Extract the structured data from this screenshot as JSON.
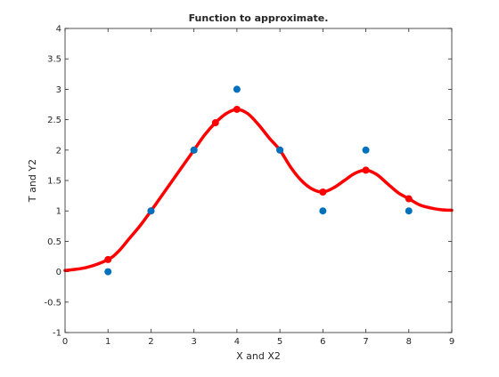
{
  "chart_data": {
    "type": "scatter",
    "title": "Function to approximate.",
    "xlabel": "X and X2",
    "ylabel": "T and Y2",
    "xlim": [
      0,
      9
    ],
    "ylim": [
      -1,
      4
    ],
    "x_ticks": [
      "0",
      "1",
      "2",
      "3",
      "4",
      "5",
      "6",
      "7",
      "8",
      "9"
    ],
    "y_ticks": [
      "-1",
      "-0.5",
      "0",
      "0.5",
      "1",
      "1.5",
      "2",
      "2.5",
      "3",
      "3.5",
      "4"
    ],
    "grid": false,
    "legend": "none",
    "series": [
      {
        "kind": "scatter",
        "color": "#0072bd",
        "x": [
          1,
          2,
          3,
          4,
          5,
          6,
          7,
          8
        ],
        "y": [
          0,
          1,
          2,
          3,
          2,
          1,
          2,
          1
        ]
      },
      {
        "kind": "line",
        "color": "#ff0000",
        "marker": "circle",
        "x": [
          0,
          0.5,
          1,
          1.25,
          1.5,
          1.75,
          2,
          2.25,
          2.5,
          2.75,
          3,
          3.25,
          3.5,
          3.75,
          4,
          4.25,
          4.5,
          4.75,
          5,
          5.25,
          5.5,
          5.75,
          6,
          6.25,
          6.5,
          6.75,
          7,
          7.25,
          7.5,
          7.75,
          8,
          8.25,
          8.5,
          8.75,
          9
        ],
        "y": [
          0.02,
          0.07,
          0.2,
          0.34,
          0.55,
          0.76,
          1.0,
          1.25,
          1.5,
          1.75,
          2.0,
          2.25,
          2.45,
          2.6,
          2.67,
          2.6,
          2.42,
          2.2,
          2.0,
          1.72,
          1.5,
          1.36,
          1.31,
          1.38,
          1.5,
          1.62,
          1.67,
          1.6,
          1.45,
          1.3,
          1.2,
          1.1,
          1.05,
          1.02,
          1.01
        ],
        "marker_x": [
          1,
          2,
          3,
          3.5,
          4,
          5,
          6,
          7,
          8
        ],
        "marker_y": [
          0.2,
          1.0,
          2.0,
          2.45,
          2.67,
          2.0,
          1.31,
          1.67,
          1.2
        ]
      }
    ]
  }
}
